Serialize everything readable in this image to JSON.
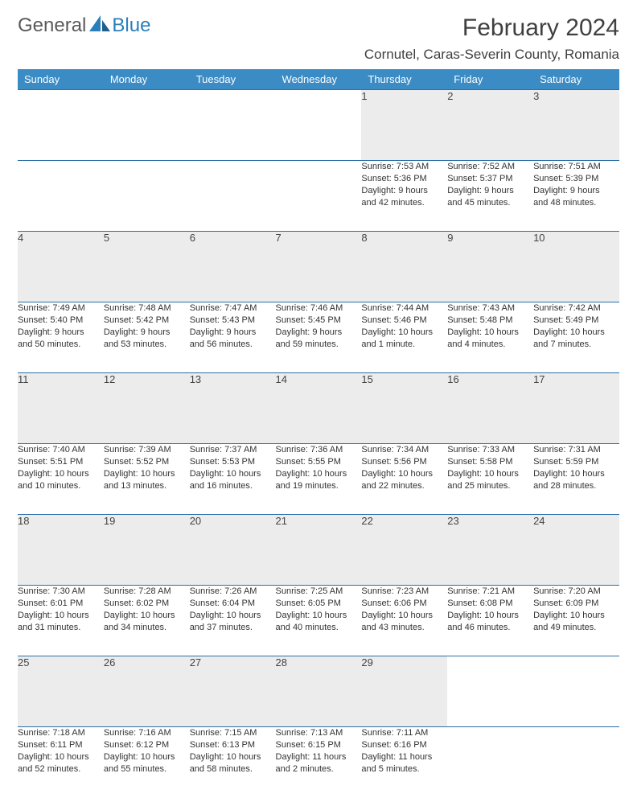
{
  "logo": {
    "general": "General",
    "blue": "Blue"
  },
  "title": "February 2024",
  "location": "Cornutel, Caras-Severin County, Romania",
  "weekdays": [
    "Sunday",
    "Monday",
    "Tuesday",
    "Wednesday",
    "Thursday",
    "Friday",
    "Saturday"
  ],
  "colors": {
    "header_bg": "#3b8bc4",
    "header_text": "#ffffff",
    "daynum_bg": "#ececec",
    "border": "#2a6fa8",
    "logo_gray": "#5a5a5a",
    "logo_blue": "#2a7fba"
  },
  "weeks": [
    [
      null,
      null,
      null,
      null,
      {
        "n": "1",
        "sr": "Sunrise: 7:53 AM",
        "ss": "Sunset: 5:36 PM",
        "d1": "Daylight: 9 hours",
        "d2": "and 42 minutes."
      },
      {
        "n": "2",
        "sr": "Sunrise: 7:52 AM",
        "ss": "Sunset: 5:37 PM",
        "d1": "Daylight: 9 hours",
        "d2": "and 45 minutes."
      },
      {
        "n": "3",
        "sr": "Sunrise: 7:51 AM",
        "ss": "Sunset: 5:39 PM",
        "d1": "Daylight: 9 hours",
        "d2": "and 48 minutes."
      }
    ],
    [
      {
        "n": "4",
        "sr": "Sunrise: 7:49 AM",
        "ss": "Sunset: 5:40 PM",
        "d1": "Daylight: 9 hours",
        "d2": "and 50 minutes."
      },
      {
        "n": "5",
        "sr": "Sunrise: 7:48 AM",
        "ss": "Sunset: 5:42 PM",
        "d1": "Daylight: 9 hours",
        "d2": "and 53 minutes."
      },
      {
        "n": "6",
        "sr": "Sunrise: 7:47 AM",
        "ss": "Sunset: 5:43 PM",
        "d1": "Daylight: 9 hours",
        "d2": "and 56 minutes."
      },
      {
        "n": "7",
        "sr": "Sunrise: 7:46 AM",
        "ss": "Sunset: 5:45 PM",
        "d1": "Daylight: 9 hours",
        "d2": "and 59 minutes."
      },
      {
        "n": "8",
        "sr": "Sunrise: 7:44 AM",
        "ss": "Sunset: 5:46 PM",
        "d1": "Daylight: 10 hours",
        "d2": "and 1 minute."
      },
      {
        "n": "9",
        "sr": "Sunrise: 7:43 AM",
        "ss": "Sunset: 5:48 PM",
        "d1": "Daylight: 10 hours",
        "d2": "and 4 minutes."
      },
      {
        "n": "10",
        "sr": "Sunrise: 7:42 AM",
        "ss": "Sunset: 5:49 PM",
        "d1": "Daylight: 10 hours",
        "d2": "and 7 minutes."
      }
    ],
    [
      {
        "n": "11",
        "sr": "Sunrise: 7:40 AM",
        "ss": "Sunset: 5:51 PM",
        "d1": "Daylight: 10 hours",
        "d2": "and 10 minutes."
      },
      {
        "n": "12",
        "sr": "Sunrise: 7:39 AM",
        "ss": "Sunset: 5:52 PM",
        "d1": "Daylight: 10 hours",
        "d2": "and 13 minutes."
      },
      {
        "n": "13",
        "sr": "Sunrise: 7:37 AM",
        "ss": "Sunset: 5:53 PM",
        "d1": "Daylight: 10 hours",
        "d2": "and 16 minutes."
      },
      {
        "n": "14",
        "sr": "Sunrise: 7:36 AM",
        "ss": "Sunset: 5:55 PM",
        "d1": "Daylight: 10 hours",
        "d2": "and 19 minutes."
      },
      {
        "n": "15",
        "sr": "Sunrise: 7:34 AM",
        "ss": "Sunset: 5:56 PM",
        "d1": "Daylight: 10 hours",
        "d2": "and 22 minutes."
      },
      {
        "n": "16",
        "sr": "Sunrise: 7:33 AM",
        "ss": "Sunset: 5:58 PM",
        "d1": "Daylight: 10 hours",
        "d2": "and 25 minutes."
      },
      {
        "n": "17",
        "sr": "Sunrise: 7:31 AM",
        "ss": "Sunset: 5:59 PM",
        "d1": "Daylight: 10 hours",
        "d2": "and 28 minutes."
      }
    ],
    [
      {
        "n": "18",
        "sr": "Sunrise: 7:30 AM",
        "ss": "Sunset: 6:01 PM",
        "d1": "Daylight: 10 hours",
        "d2": "and 31 minutes."
      },
      {
        "n": "19",
        "sr": "Sunrise: 7:28 AM",
        "ss": "Sunset: 6:02 PM",
        "d1": "Daylight: 10 hours",
        "d2": "and 34 minutes."
      },
      {
        "n": "20",
        "sr": "Sunrise: 7:26 AM",
        "ss": "Sunset: 6:04 PM",
        "d1": "Daylight: 10 hours",
        "d2": "and 37 minutes."
      },
      {
        "n": "21",
        "sr": "Sunrise: 7:25 AM",
        "ss": "Sunset: 6:05 PM",
        "d1": "Daylight: 10 hours",
        "d2": "and 40 minutes."
      },
      {
        "n": "22",
        "sr": "Sunrise: 7:23 AM",
        "ss": "Sunset: 6:06 PM",
        "d1": "Daylight: 10 hours",
        "d2": "and 43 minutes."
      },
      {
        "n": "23",
        "sr": "Sunrise: 7:21 AM",
        "ss": "Sunset: 6:08 PM",
        "d1": "Daylight: 10 hours",
        "d2": "and 46 minutes."
      },
      {
        "n": "24",
        "sr": "Sunrise: 7:20 AM",
        "ss": "Sunset: 6:09 PM",
        "d1": "Daylight: 10 hours",
        "d2": "and 49 minutes."
      }
    ],
    [
      {
        "n": "25",
        "sr": "Sunrise: 7:18 AM",
        "ss": "Sunset: 6:11 PM",
        "d1": "Daylight: 10 hours",
        "d2": "and 52 minutes."
      },
      {
        "n": "26",
        "sr": "Sunrise: 7:16 AM",
        "ss": "Sunset: 6:12 PM",
        "d1": "Daylight: 10 hours",
        "d2": "and 55 minutes."
      },
      {
        "n": "27",
        "sr": "Sunrise: 7:15 AM",
        "ss": "Sunset: 6:13 PM",
        "d1": "Daylight: 10 hours",
        "d2": "and 58 minutes."
      },
      {
        "n": "28",
        "sr": "Sunrise: 7:13 AM",
        "ss": "Sunset: 6:15 PM",
        "d1": "Daylight: 11 hours",
        "d2": "and 2 minutes."
      },
      {
        "n": "29",
        "sr": "Sunrise: 7:11 AM",
        "ss": "Sunset: 6:16 PM",
        "d1": "Daylight: 11 hours",
        "d2": "and 5 minutes."
      },
      null,
      null
    ]
  ]
}
